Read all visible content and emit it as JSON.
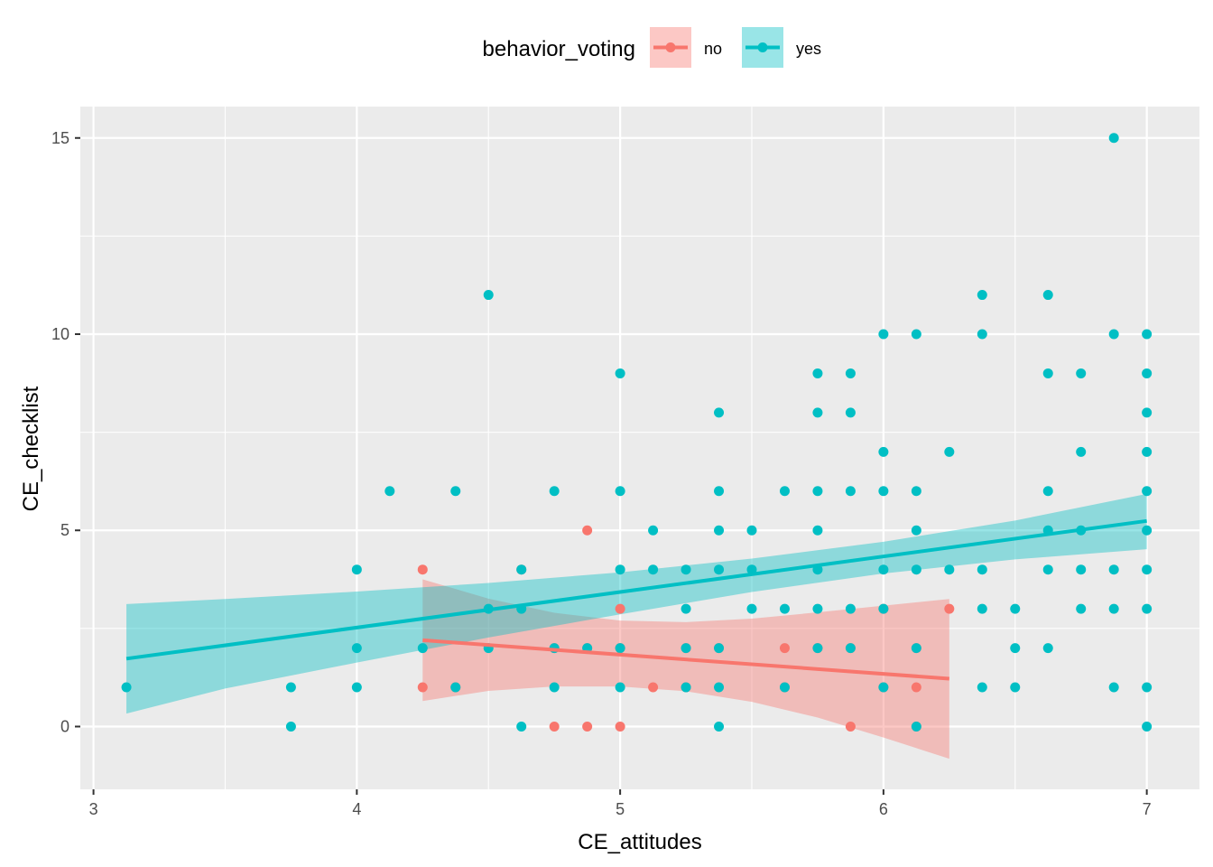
{
  "chart_data": {
    "type": "scatter",
    "title": "",
    "xlabel": "CE_attitudes",
    "ylabel": "CE_checklist",
    "xlim": [
      2.95,
      7.2
    ],
    "ylim": [
      -1.6,
      15.8
    ],
    "x_ticks": [
      3,
      4,
      5,
      6,
      7
    ],
    "x_tick_labels": [
      "3",
      "4",
      "5",
      "6",
      "7"
    ],
    "y_ticks": [
      0,
      5,
      10,
      15
    ],
    "y_tick_labels": [
      "0",
      "5",
      "10",
      "15"
    ],
    "grid": true,
    "legend": {
      "title": "behavior_voting",
      "position": "top",
      "entries": [
        "no",
        "yes"
      ]
    },
    "series": [
      {
        "name": "no",
        "color": "#F8766D",
        "points": [
          [
            4.25,
            4
          ],
          [
            4.25,
            1
          ],
          [
            4.375,
            1
          ],
          [
            4.625,
            4
          ],
          [
            4.75,
            0
          ],
          [
            4.75,
            2
          ],
          [
            4.875,
            5
          ],
          [
            4.875,
            0
          ],
          [
            4.875,
            2
          ],
          [
            5.0,
            0
          ],
          [
            5.0,
            3
          ],
          [
            5.0,
            2
          ],
          [
            5.125,
            1
          ],
          [
            5.25,
            2
          ],
          [
            5.25,
            1
          ],
          [
            5.375,
            2
          ],
          [
            5.625,
            2
          ],
          [
            5.625,
            1
          ],
          [
            5.75,
            2
          ],
          [
            5.875,
            0
          ],
          [
            5.875,
            2
          ],
          [
            6.0,
            3
          ],
          [
            6.0,
            1
          ],
          [
            6.125,
            1
          ],
          [
            6.125,
            2
          ],
          [
            6.125,
            0
          ],
          [
            6.25,
            3
          ]
        ],
        "fit": {
          "x": [
            4.25,
            6.25
          ],
          "y": [
            2.2,
            1.22
          ]
        },
        "band": {
          "x": [
            4.25,
            4.5,
            4.75,
            5.0,
            5.25,
            5.5,
            5.75,
            6.0,
            6.25
          ],
          "upper": [
            3.75,
            3.26,
            2.9,
            2.7,
            2.66,
            2.75,
            2.91,
            3.08,
            3.25
          ],
          "lower": [
            0.65,
            0.91,
            1.02,
            1.02,
            0.9,
            0.63,
            0.23,
            -0.28,
            -0.82
          ]
        }
      },
      {
        "name": "yes",
        "color": "#00BFC4",
        "points": [
          [
            3.125,
            1
          ],
          [
            3.75,
            1
          ],
          [
            3.75,
            0
          ],
          [
            4.0,
            4
          ],
          [
            4.0,
            2
          ],
          [
            4.0,
            1
          ],
          [
            4.125,
            6
          ],
          [
            4.25,
            2
          ],
          [
            4.375,
            6
          ],
          [
            4.375,
            1
          ],
          [
            4.5,
            11
          ],
          [
            4.5,
            3
          ],
          [
            4.5,
            2
          ],
          [
            4.625,
            4
          ],
          [
            4.625,
            3
          ],
          [
            4.625,
            0
          ],
          [
            4.75,
            6
          ],
          [
            4.75,
            1
          ],
          [
            4.75,
            2
          ],
          [
            4.875,
            2
          ],
          [
            5.0,
            9
          ],
          [
            5.0,
            6
          ],
          [
            5.0,
            4
          ],
          [
            5.0,
            2
          ],
          [
            5.0,
            1
          ],
          [
            5.125,
            5
          ],
          [
            5.125,
            4
          ],
          [
            5.25,
            4
          ],
          [
            5.25,
            3
          ],
          [
            5.25,
            2
          ],
          [
            5.25,
            1
          ],
          [
            5.375,
            8
          ],
          [
            5.375,
            6
          ],
          [
            5.375,
            5
          ],
          [
            5.375,
            4
          ],
          [
            5.375,
            2
          ],
          [
            5.375,
            1
          ],
          [
            5.375,
            0
          ],
          [
            5.5,
            5
          ],
          [
            5.5,
            4
          ],
          [
            5.5,
            3
          ],
          [
            5.625,
            6
          ],
          [
            5.625,
            3
          ],
          [
            5.625,
            1
          ],
          [
            5.75,
            9
          ],
          [
            5.75,
            8
          ],
          [
            5.75,
            6
          ],
          [
            5.75,
            5
          ],
          [
            5.75,
            4
          ],
          [
            5.75,
            3
          ],
          [
            5.75,
            2
          ],
          [
            5.875,
            9
          ],
          [
            5.875,
            8
          ],
          [
            5.875,
            6
          ],
          [
            5.875,
            3
          ],
          [
            5.875,
            2
          ],
          [
            6.0,
            10
          ],
          [
            6.0,
            7
          ],
          [
            6.0,
            6
          ],
          [
            6.0,
            4
          ],
          [
            6.0,
            3
          ],
          [
            6.0,
            1
          ],
          [
            6.125,
            10
          ],
          [
            6.125,
            6
          ],
          [
            6.125,
            5
          ],
          [
            6.125,
            4
          ],
          [
            6.125,
            2
          ],
          [
            6.125,
            0
          ],
          [
            6.25,
            7
          ],
          [
            6.25,
            4
          ],
          [
            6.375,
            11
          ],
          [
            6.375,
            10
          ],
          [
            6.375,
            4
          ],
          [
            6.375,
            3
          ],
          [
            6.375,
            1
          ],
          [
            6.5,
            3
          ],
          [
            6.5,
            2
          ],
          [
            6.5,
            1
          ],
          [
            6.625,
            11
          ],
          [
            6.625,
            9
          ],
          [
            6.625,
            6
          ],
          [
            6.625,
            5
          ],
          [
            6.625,
            4
          ],
          [
            6.625,
            2
          ],
          [
            6.75,
            9
          ],
          [
            6.75,
            7
          ],
          [
            6.75,
            5
          ],
          [
            6.75,
            4
          ],
          [
            6.75,
            3
          ],
          [
            6.875,
            15
          ],
          [
            6.875,
            10
          ],
          [
            6.875,
            4
          ],
          [
            6.875,
            3
          ],
          [
            6.875,
            1
          ],
          [
            7.0,
            10
          ],
          [
            7.0,
            9
          ],
          [
            7.0,
            8
          ],
          [
            7.0,
            7
          ],
          [
            7.0,
            6
          ],
          [
            7.0,
            5
          ],
          [
            7.0,
            4
          ],
          [
            7.0,
            3
          ],
          [
            7.0,
            1
          ],
          [
            7.0,
            0
          ]
        ],
        "fit": {
          "x": [
            3.125,
            7.0
          ],
          "y": [
            1.73,
            5.24
          ]
        },
        "band": {
          "x": [
            3.125,
            3.5,
            4.0,
            4.5,
            5.0,
            5.5,
            6.0,
            6.5,
            7.0
          ],
          "upper": [
            3.12,
            3.25,
            3.44,
            3.66,
            3.93,
            4.28,
            4.71,
            5.25,
            5.93
          ],
          "lower": [
            0.33,
            0.97,
            1.63,
            2.27,
            2.86,
            3.43,
            3.9,
            4.26,
            4.52
          ]
        }
      }
    ]
  }
}
